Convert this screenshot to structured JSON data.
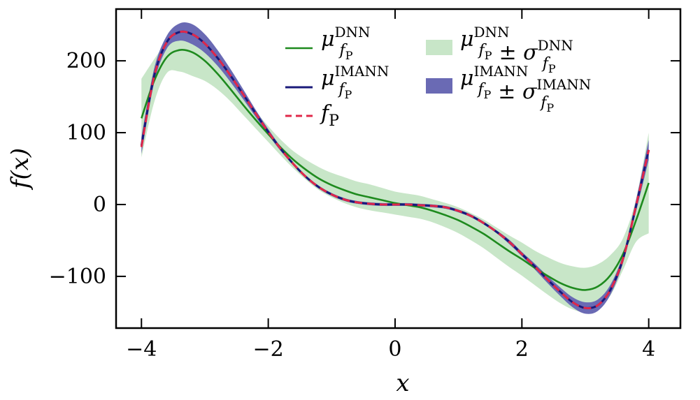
{
  "chart_data": {
    "type": "line",
    "xlabel": "x",
    "ylabel": "f(x)",
    "xlim": [
      -4.4,
      4.5
    ],
    "ylim": [
      -172,
      272
    ],
    "xticks": [
      -4,
      -2,
      0,
      2,
      4
    ],
    "yticks": [
      -100,
      0,
      100,
      200
    ],
    "xtick_labels": [
      "−4",
      "−2",
      "0",
      "2",
      "4"
    ],
    "ytick_labels": [
      "−100",
      "0",
      "100",
      "200"
    ],
    "colors": {
      "dnn": "#1e8a1e",
      "dnn_band": "#c8e6c8",
      "imann": "#1a1a7a",
      "imann_band": "#6a6ab4",
      "fp": "#e0284a"
    },
    "legend": {
      "placement": "top-right",
      "entries": [
        {
          "key": "dnn_mean",
          "symbol": "μ",
          "sup": "DNN",
          "sub": "f",
          "subsub": "P",
          "pm": ""
        },
        {
          "key": "imann_mean",
          "symbol": "μ",
          "sup": "IMANN",
          "sub": "f",
          "subsub": "P",
          "pm": ""
        },
        {
          "key": "fp",
          "symbol": "f",
          "sup": "",
          "sub": "P",
          "subsub": "",
          "pm": ""
        },
        {
          "key": "dnn_band",
          "symbol": "μ",
          "sup": "DNN",
          "sub": "f",
          "subsub": "P",
          "pm": "± σ"
        },
        {
          "key": "imann_band",
          "symbol": "μ",
          "sup": "IMANN",
          "sub": "f",
          "subsub": "P",
          "pm": "± σ"
        }
      ]
    },
    "series": [
      {
        "name": "f_P",
        "style": "dashed",
        "x": [
          -4.0,
          -3.8,
          -3.6,
          -3.4,
          -3.2,
          -3.0,
          -2.8,
          -2.6,
          -2.4,
          -2.2,
          -2.0,
          -1.8,
          -1.6,
          -1.4,
          -1.2,
          -1.0,
          -0.8,
          -0.6,
          -0.4,
          -0.2,
          0.0,
          0.2,
          0.4,
          0.6,
          0.8,
          1.0,
          1.2,
          1.4,
          1.6,
          1.8,
          2.0,
          2.2,
          2.4,
          2.6,
          2.8,
          3.0,
          3.2,
          3.4,
          3.6,
          3.8,
          4.0
        ],
        "y": [
          80,
          178,
          226,
          240,
          237,
          224,
          204,
          180,
          154,
          127,
          101,
          77,
          56,
          38,
          24,
          14,
          7,
          3,
          1,
          0,
          0,
          0,
          -1,
          -2,
          -4,
          -9,
          -16,
          -26,
          -38,
          -52,
          -69,
          -86,
          -104,
          -121,
          -136,
          -144,
          -140,
          -118,
          -74,
          -2,
          76
        ]
      },
      {
        "name": "mu_IMANN",
        "style": "solid",
        "x": [
          -4.0,
          -3.8,
          -3.6,
          -3.4,
          -3.2,
          -3.0,
          -2.8,
          -2.6,
          -2.4,
          -2.2,
          -2.0,
          -1.8,
          -1.6,
          -1.4,
          -1.2,
          -1.0,
          -0.8,
          -0.6,
          -0.4,
          -0.2,
          0.0,
          0.2,
          0.4,
          0.6,
          0.8,
          1.0,
          1.2,
          1.4,
          1.6,
          1.8,
          2.0,
          2.2,
          2.4,
          2.6,
          2.8,
          3.0,
          3.2,
          3.4,
          3.6,
          3.8,
          4.0
        ],
        "y": [
          82,
          179,
          226,
          240,
          237,
          224,
          204,
          180,
          154,
          127,
          101,
          77,
          56,
          38,
          24,
          14,
          7,
          3,
          1,
          0,
          0,
          0,
          -1,
          -2,
          -4,
          -9,
          -16,
          -26,
          -38,
          -52,
          -69,
          -86,
          -104,
          -121,
          -136,
          -144,
          -140,
          -118,
          -74,
          -2,
          76
        ],
        "band_halfwidth": [
          12,
          10,
          9,
          12,
          14,
          13,
          11,
          9,
          7,
          5,
          4,
          3,
          2,
          2,
          2,
          2,
          2,
          2,
          2,
          2,
          2,
          2,
          2,
          2,
          2,
          2,
          2,
          2,
          2,
          3,
          3,
          4,
          5,
          6,
          7,
          8,
          8,
          7,
          6,
          8,
          14
        ]
      },
      {
        "name": "mu_DNN",
        "style": "solid",
        "x": [
          -4.0,
          -3.8,
          -3.6,
          -3.4,
          -3.2,
          -3.0,
          -2.8,
          -2.6,
          -2.4,
          -2.2,
          -2.0,
          -1.8,
          -1.6,
          -1.4,
          -1.2,
          -1.0,
          -0.8,
          -0.6,
          -0.4,
          -0.2,
          0.0,
          0.2,
          0.4,
          0.6,
          0.8,
          1.0,
          1.2,
          1.4,
          1.6,
          1.8,
          2.0,
          2.2,
          2.4,
          2.6,
          2.8,
          3.0,
          3.2,
          3.4,
          3.6,
          3.8,
          4.0
        ],
        "y": [
          120,
          172,
          205,
          215,
          212,
          200,
          182,
          161,
          139,
          118,
          98,
          79,
          62,
          48,
          36,
          27,
          20,
          14,
          10,
          6,
          2,
          -1,
          -4,
          -9,
          -15,
          -22,
          -31,
          -41,
          -53,
          -65,
          -76,
          -88,
          -99,
          -109,
          -116,
          -119,
          -114,
          -98,
          -68,
          -22,
          30
        ],
        "band_halfwidth": [
          55,
          30,
          22,
          30,
          33,
          28,
          22,
          17,
          14,
          12,
          11,
          11,
          12,
          14,
          16,
          17,
          18,
          18,
          18,
          17,
          16,
          16,
          16,
          16,
          17,
          18,
          19,
          20,
          21,
          22,
          23,
          24,
          26,
          28,
          30,
          31,
          31,
          28,
          22,
          30,
          70
        ]
      }
    ]
  }
}
